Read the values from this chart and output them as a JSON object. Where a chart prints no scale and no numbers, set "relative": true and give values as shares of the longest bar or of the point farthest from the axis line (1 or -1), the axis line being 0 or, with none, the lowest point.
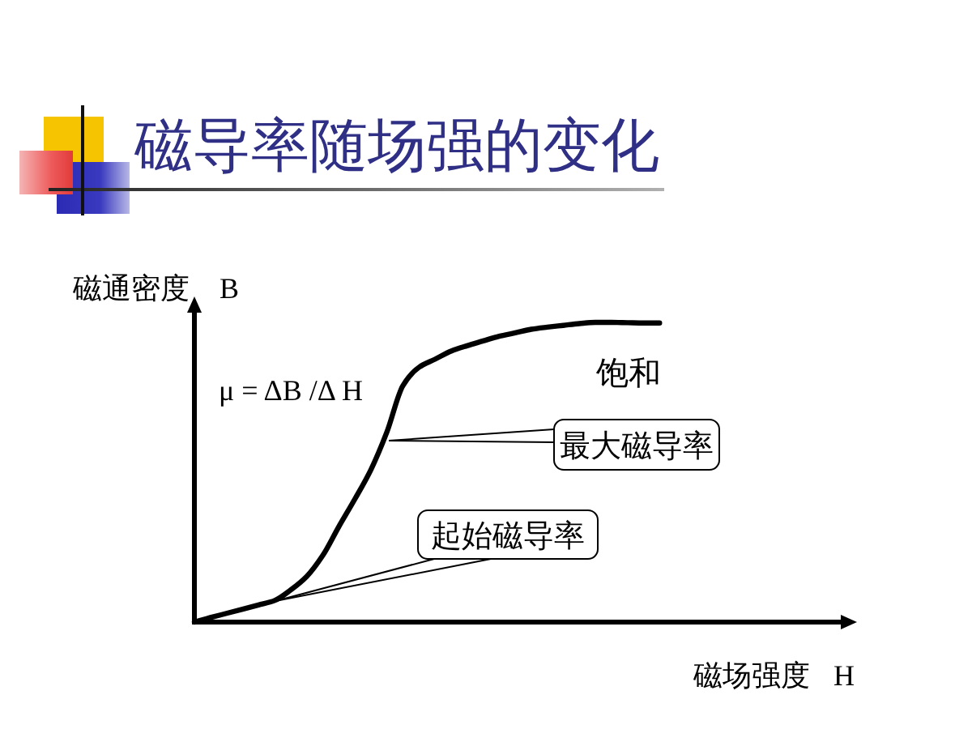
{
  "chart_data": {
    "type": "line",
    "title": "磁导率随场强的变化",
    "xlabel": "磁场强度 H",
    "ylabel": "磁通密度 B",
    "relative": true,
    "annotations": [
      "μ = ΔB /Δ H",
      "饱和",
      "最大磁导率",
      "起始磁导率"
    ],
    "categories": [
      null,
      null,
      null,
      null,
      null,
      null,
      null,
      null,
      null,
      null,
      null,
      null,
      null,
      null,
      null,
      null,
      null,
      null,
      null,
      null,
      null,
      null,
      null,
      null,
      null,
      null,
      null,
      null,
      null,
      null
    ],
    "series": [
      {
        "color": "#000000",
        "values": [
          0,
          0.015,
          0.029,
          0.043,
          0.057,
          0.072,
          0.107,
          0.152,
          0.222,
          0.318,
          0.41,
          0.508,
          0.634,
          0.789,
          0.85,
          0.877,
          0.904,
          0.922,
          0.938,
          0.954,
          0.965,
          0.977,
          0.984,
          0.99,
          0.996,
          1,
          1,
          0.999,
          0.998,
          0.998
        ]
      }
    ]
  }
}
